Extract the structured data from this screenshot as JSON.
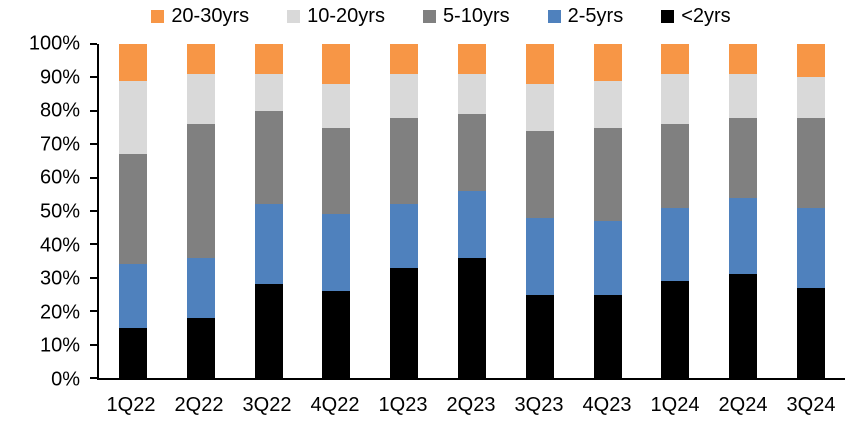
{
  "chart_data": {
    "type": "bar",
    "subtype": "stacked-100",
    "title": "",
    "xlabel": "",
    "ylabel": "",
    "ylim": [
      0,
      100
    ],
    "grid": false,
    "legend_position": "top",
    "y_ticks": [
      "100%",
      "90%",
      "80%",
      "70%",
      "60%",
      "50%",
      "40%",
      "30%",
      "20%",
      "10%",
      "0%"
    ],
    "categories": [
      "1Q22",
      "2Q22",
      "3Q22",
      "4Q22",
      "1Q23",
      "2Q23",
      "3Q23",
      "4Q23",
      "1Q24",
      "2Q24",
      "3Q24"
    ],
    "series": [
      {
        "name": "20-30yrs",
        "color": "#F79646",
        "values": [
          11,
          9,
          9,
          12,
          9,
          9,
          12,
          11,
          9,
          9,
          10
        ]
      },
      {
        "name": "10-20yrs",
        "color": "#D9D9D9",
        "values": [
          22,
          15,
          11,
          13,
          13,
          12,
          14,
          14,
          15,
          13,
          12
        ]
      },
      {
        "name": "5-10yrs",
        "color": "#808080",
        "values": [
          33,
          40,
          28,
          26,
          26,
          23,
          26,
          28,
          25,
          24,
          27
        ]
      },
      {
        "name": "2-5yrs",
        "color": "#4F81BD",
        "values": [
          19,
          18,
          24,
          23,
          19,
          20,
          23,
          22,
          22,
          23,
          24
        ]
      },
      {
        "name": "<2yrs",
        "color": "#000000",
        "values": [
          15,
          18,
          28,
          26,
          33,
          36,
          25,
          25,
          29,
          31,
          27
        ]
      }
    ],
    "colors": {
      "axis": "#000000",
      "text": "#000000",
      "background": "#FFFFFF"
    }
  }
}
